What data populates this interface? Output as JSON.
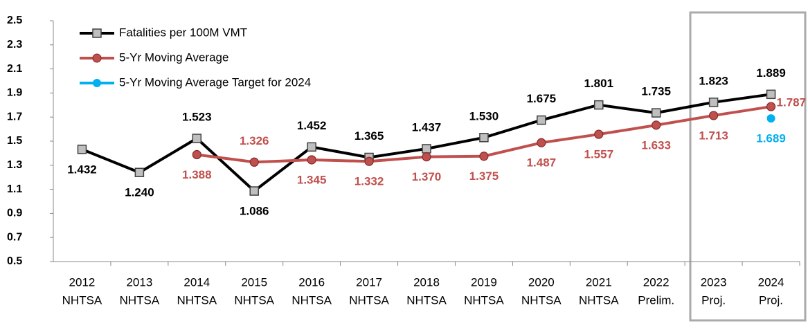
{
  "chart_data": {
    "type": "line",
    "categories": [
      [
        "2012",
        "NHTSA"
      ],
      [
        "2013",
        "NHTSA"
      ],
      [
        "2014",
        "NHTSA"
      ],
      [
        "2015",
        "NHTSA"
      ],
      [
        "2016",
        "NHTSA"
      ],
      [
        "2017",
        "NHTSA"
      ],
      [
        "2018",
        "NHTSA"
      ],
      [
        "2019",
        "NHTSA"
      ],
      [
        "2020",
        "NHTSA"
      ],
      [
        "2021",
        "NHTSA"
      ],
      [
        "2022",
        "Prelim."
      ],
      [
        "2023",
        "Proj."
      ],
      [
        "2024",
        "Proj."
      ]
    ],
    "series": [
      {
        "name": "Fatalities per 100M VMT",
        "color": "#000000",
        "marker": "square",
        "values": [
          1.432,
          1.24,
          1.523,
          1.086,
          1.452,
          1.365,
          1.437,
          1.53,
          1.675,
          1.801,
          1.735,
          1.823,
          1.889
        ],
        "value_labels": [
          "1.432",
          "1.240",
          "1.523",
          "1.086",
          "1.452",
          "1.365",
          "1.437",
          "1.530",
          "1.675",
          "1.801",
          "1.735",
          "1.823",
          "1.889"
        ]
      },
      {
        "name": "5-Yr Moving Average",
        "color": "#c0504d",
        "marker": "circle",
        "values": [
          null,
          null,
          1.388,
          1.326,
          1.345,
          1.332,
          1.37,
          1.375,
          1.487,
          1.557,
          1.633,
          1.713,
          1.787
        ],
        "value_labels": [
          null,
          null,
          "1.388",
          "1.326",
          "1.345",
          "1.332",
          "1.370",
          "1.375",
          "1.487",
          "1.557",
          "1.633",
          "1.713",
          "1.787"
        ]
      },
      {
        "name": "5-Yr Moving Average Target for 2024",
        "color": "#00b0f0",
        "marker": "dot",
        "values": [
          null,
          null,
          null,
          null,
          null,
          null,
          null,
          null,
          null,
          null,
          null,
          null,
          1.689
        ],
        "value_labels": [
          null,
          null,
          null,
          null,
          null,
          null,
          null,
          null,
          null,
          null,
          null,
          null,
          "1.689"
        ]
      }
    ],
    "ylim": [
      0.5,
      2.5
    ],
    "yticks": [
      0.5,
      0.7,
      0.9,
      1.1,
      1.3,
      1.5,
      1.7,
      1.9,
      2.1,
      2.3,
      2.5
    ],
    "legend": "upper left"
  }
}
